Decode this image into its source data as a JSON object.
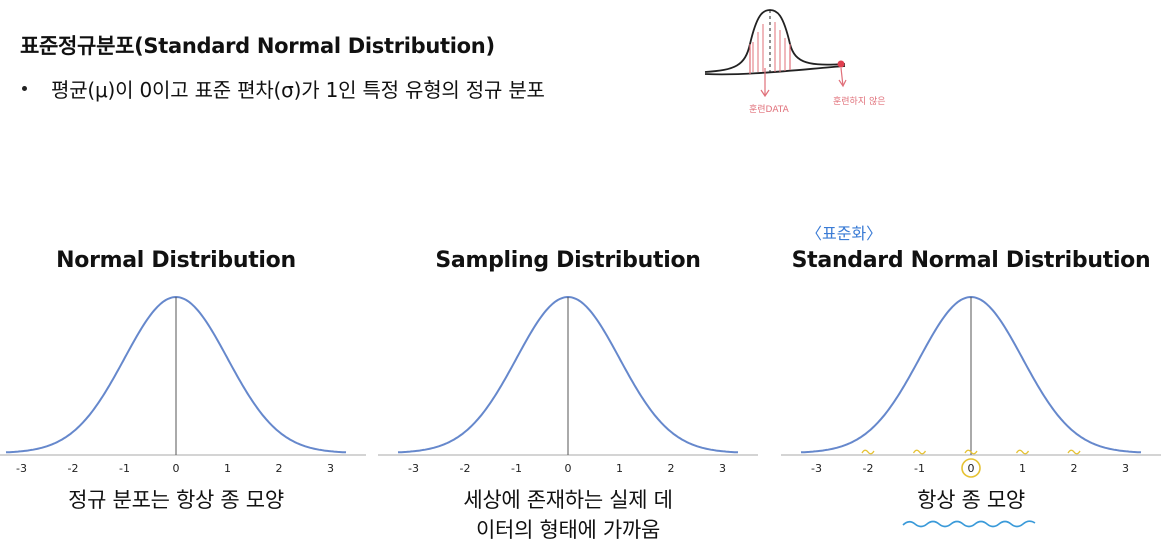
{
  "header": {
    "title": "표준정규분포(Standard Normal Distribution)",
    "bullet": "평균(μ)이 0이고 표준 편차(σ)가 1인 특정 유형의 정규 분포"
  },
  "sketch": {
    "label_left": "훈련DATA",
    "label_right": "훈련하지 않은"
  },
  "annotation": {
    "standardize": "〈표준화〉"
  },
  "panels": [
    {
      "title": "Normal Distribution",
      "caption_lines": [
        "정규 분포는 항상 종 모양"
      ]
    },
    {
      "title": "Sampling Distribution",
      "caption_lines": [
        "세상에 존재하는 실제 데",
        "이터의 형태에 가까움"
      ]
    },
    {
      "title": "Standard Normal Distribution",
      "caption_lines": [
        "항상 종 모양"
      ]
    }
  ],
  "axis_ticks": [
    "-3",
    "-2",
    "-1",
    "0",
    "1",
    "2",
    "3"
  ],
  "colors": {
    "curve": "#6688cc",
    "sketch_red": "#e0707a",
    "highlight_yellow": "#e6c233",
    "underline_blue": "#3a9ad9"
  }
}
